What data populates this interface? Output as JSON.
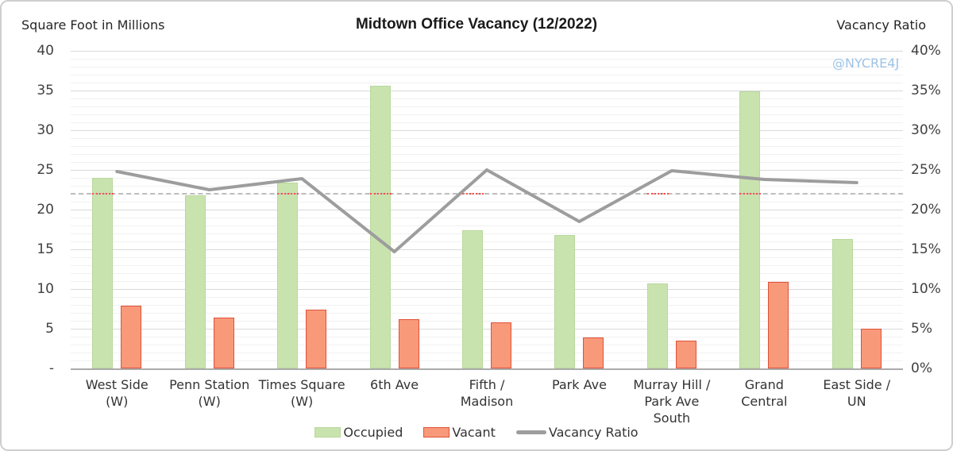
{
  "chart_data": {
    "type": "bar+line",
    "title": "Midtown Office Vacancy (12/2022)",
    "watermark": "@NYCRE4J",
    "left_axis": {
      "label": "Square Foot in Millions",
      "min": 0,
      "max": 40,
      "tick_step": 5,
      "tick_labels": [
        "40",
        "35",
        "30",
        "25",
        "20",
        "15",
        "10",
        "5",
        "-"
      ]
    },
    "right_axis": {
      "label": "Vacancy Ratio",
      "min": 0,
      "max": 40,
      "tick_step": 5,
      "tick_labels": [
        "40%",
        "35%",
        "30%",
        "25%",
        "20%",
        "15%",
        "10%",
        "5%",
        "0%"
      ]
    },
    "categories": [
      "West Side\n(W)",
      "Penn Station\n(W)",
      "Times Square\n(W)",
      "6th Ave",
      "Fifth /\nMadison",
      "Park Ave",
      "Murray Hill /\nPark Ave\nSouth",
      "Grand\nCentral",
      "East Side /\nUN"
    ],
    "series": [
      {
        "name": "Occupied",
        "kind": "bar",
        "color": "#c9e3ae",
        "border": "#b9d79c",
        "values": [
          24.0,
          21.8,
          23.4,
          35.6,
          17.4,
          16.8,
          10.7,
          34.9,
          16.3
        ]
      },
      {
        "name": "Vacant",
        "kind": "bar",
        "color": "#f8997a",
        "border": "#df5238",
        "values": [
          7.9,
          6.4,
          7.4,
          6.2,
          5.8,
          3.9,
          3.5,
          10.9,
          5.0
        ]
      },
      {
        "name": "Vacancy Ratio",
        "kind": "line",
        "color": "#9d9d9d",
        "values": [
          24.8,
          22.5,
          23.9,
          14.7,
          25.0,
          18.5,
          24.9,
          23.8,
          23.4
        ]
      }
    ],
    "reference_line": {
      "value": 22.0,
      "gray_color": "#bdbdbd",
      "red_color": "#ff4d4d",
      "red_mark_categories": [
        0,
        2,
        3,
        4,
        6,
        7
      ]
    },
    "legend": [
      "Occupied",
      "Vacant",
      "Vacancy Ratio"
    ],
    "grid": {
      "minor_step": 1,
      "major_step": 5
    }
  }
}
